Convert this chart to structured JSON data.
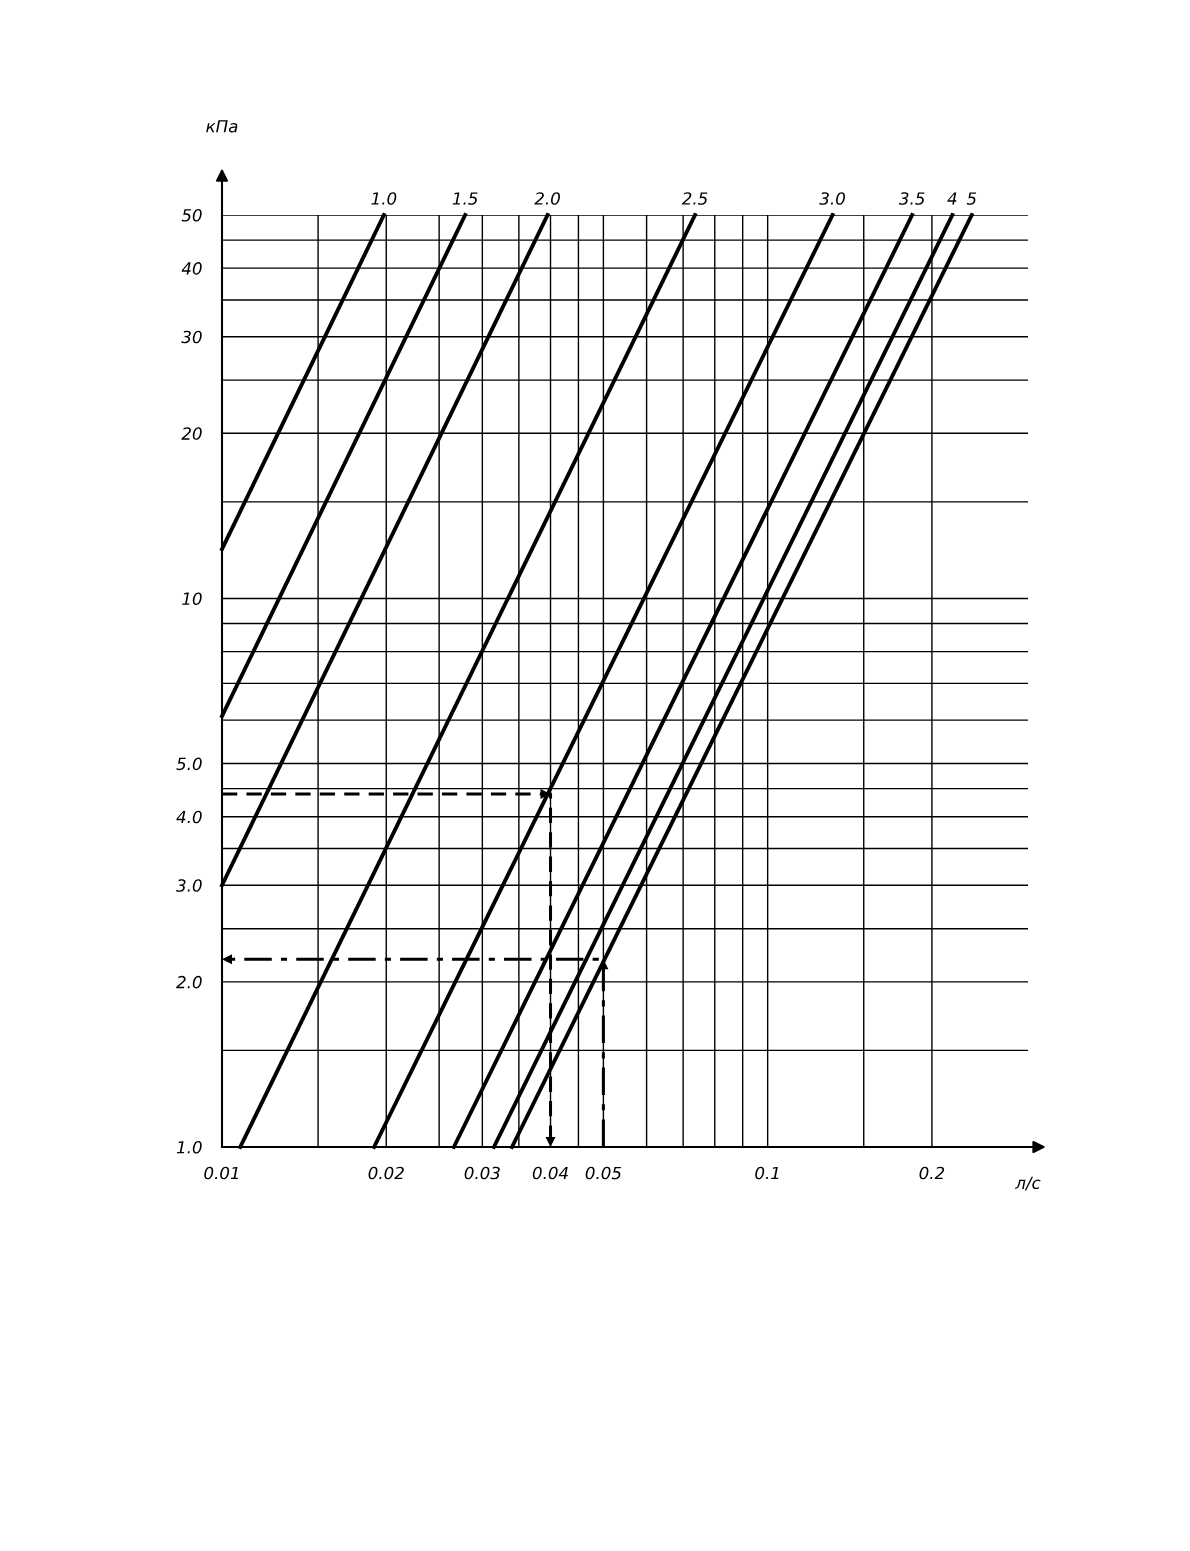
{
  "chart_data": {
    "type": "line",
    "xlabel": "л/с",
    "ylabel": "кПа",
    "log": "xy",
    "grid": true,
    "marker": "none",
    "line_style": "solid",
    "xlim": [
      0.01,
      0.3
    ],
    "ylim": [
      1,
      50
    ],
    "xticks": [
      {
        "value": 0.01,
        "label": "0.01"
      },
      {
        "value": 0.015,
        "label": null
      },
      {
        "value": 0.02,
        "label": "0.02"
      },
      {
        "value": 0.025,
        "label": null
      },
      {
        "value": 0.03,
        "label": "0.03"
      },
      {
        "value": 0.035,
        "label": null
      },
      {
        "value": 0.04,
        "label": "0.04"
      },
      {
        "value": 0.045,
        "label": null
      },
      {
        "value": 0.05,
        "label": "0.05"
      },
      {
        "value": 0.06,
        "label": null
      },
      {
        "value": 0.07,
        "label": null
      },
      {
        "value": 0.08,
        "label": null
      },
      {
        "value": 0.09,
        "label": null
      },
      {
        "value": 0.1,
        "label": "0.1"
      },
      {
        "value": 0.15,
        "label": null
      },
      {
        "value": 0.2,
        "label": "0.2"
      }
    ],
    "yticks": [
      {
        "value": 1,
        "label": "1.0"
      },
      {
        "value": 1.5,
        "label": null
      },
      {
        "value": 2,
        "label": "2.0"
      },
      {
        "value": 2.5,
        "label": null
      },
      {
        "value": 3,
        "label": "3.0"
      },
      {
        "value": 3.5,
        "label": null
      },
      {
        "value": 4,
        "label": "4.0"
      },
      {
        "value": 4.5,
        "label": null
      },
      {
        "value": 5,
        "label": "5.0"
      },
      {
        "value": 6,
        "label": null
      },
      {
        "value": 7,
        "label": null
      },
      {
        "value": 8,
        "label": null
      },
      {
        "value": 9,
        "label": null
      },
      {
        "value": 10,
        "label": "10"
      },
      {
        "value": 15,
        "label": null
      },
      {
        "value": 20,
        "label": "20"
      },
      {
        "value": 25,
        "label": null
      },
      {
        "value": 30,
        "label": "30"
      },
      {
        "value": 35,
        "label": null
      },
      {
        "value": 40,
        "label": "40"
      },
      {
        "value": 45,
        "label": null
      },
      {
        "value": 50,
        "label": "50"
      }
    ],
    "series": [
      {
        "name": "1.0",
        "color": "#000000",
        "x": [
          0.01,
          0.0198
        ],
        "values": [
          12.3,
          50
        ]
      },
      {
        "name": "1.5",
        "color": "#000000",
        "x": [
          0.01,
          0.0279
        ],
        "values": [
          6.1,
          50
        ]
      },
      {
        "name": "2.0",
        "color": "#000000",
        "x": [
          0.01,
          0.0395
        ],
        "values": [
          3.0,
          50
        ]
      },
      {
        "name": "2.5",
        "color": "#000000",
        "x": [
          0.0108,
          0.0736
        ],
        "values": [
          1,
          50
        ]
      },
      {
        "name": "3.0",
        "color": "#000000",
        "x": [
          0.019,
          0.1315
        ],
        "values": [
          1,
          50
        ]
      },
      {
        "name": "3.5",
        "color": "#000000",
        "x": [
          0.0266,
          0.184
        ],
        "values": [
          1,
          50
        ]
      },
      {
        "name": "4",
        "color": "#000000",
        "x": [
          0.0315,
          0.218
        ],
        "values": [
          1,
          50
        ]
      },
      {
        "name": "5",
        "color": "#000000",
        "x": [
          0.034,
          0.2366
        ],
        "values": [
          1,
          50
        ]
      },
      {
        "color": "#000000",
        "line_style": "dashed",
        "x": [
          0.01,
          0.04,
          0.04
        ],
        "values": [
          4.4,
          4.4,
          1
        ]
      },
      {
        "color": "#000000",
        "line_style": "dashdot",
        "x": [
          0.05,
          0.05,
          0.01
        ],
        "values": [
          1,
          2.2,
          2.2
        ]
      }
    ]
  }
}
